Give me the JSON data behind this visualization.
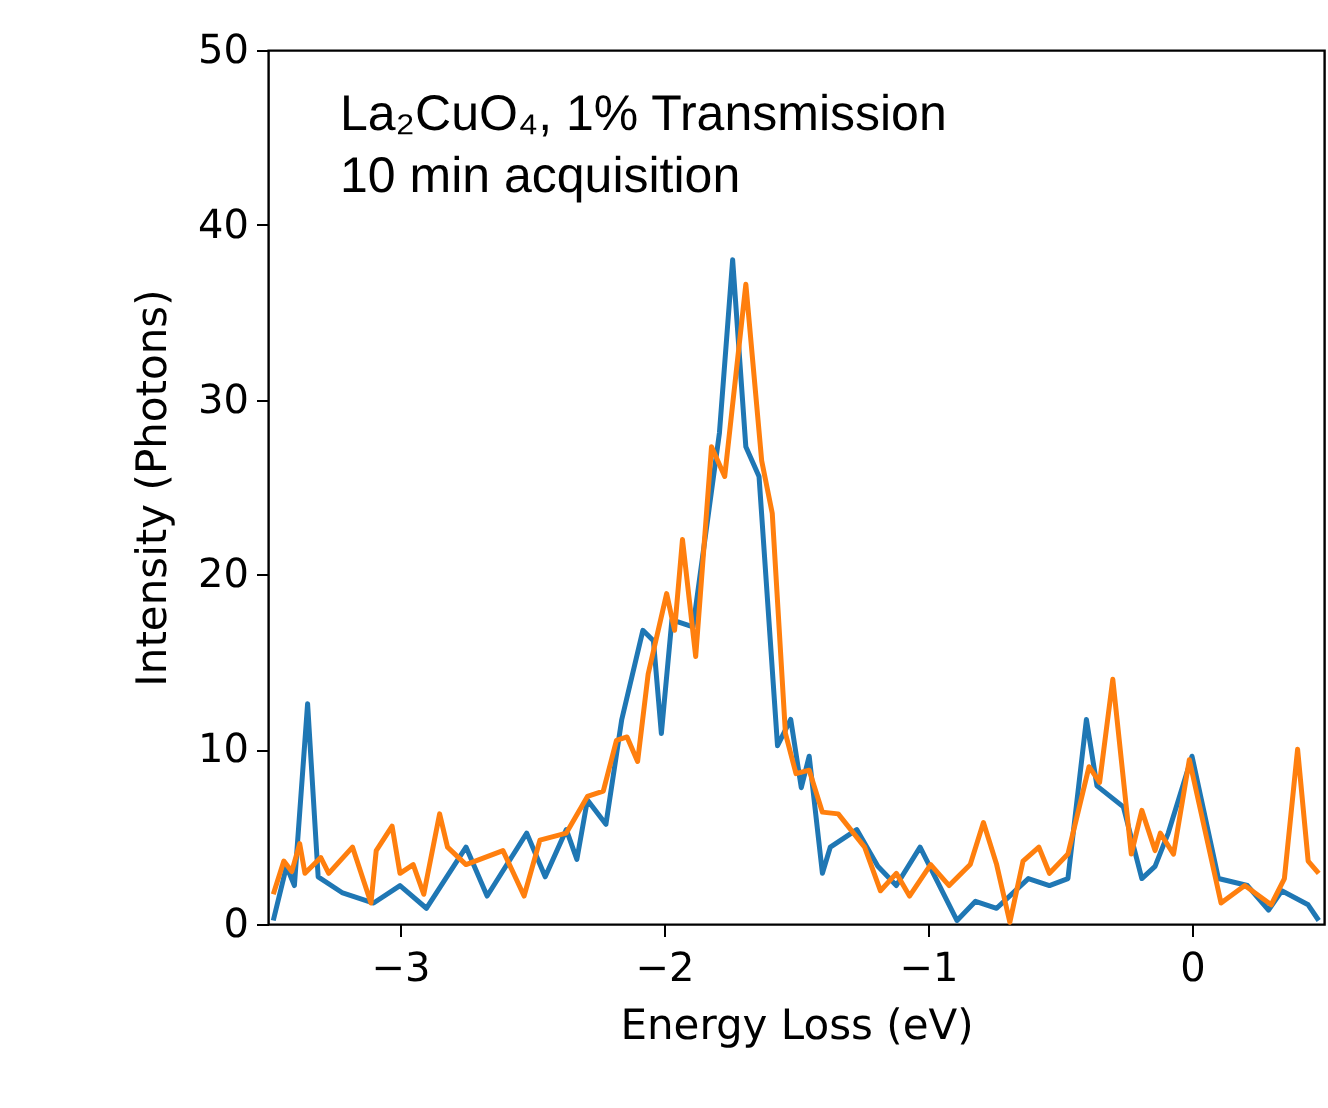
{
  "chart_data": {
    "type": "line",
    "xlabel": "Energy Loss (eV)",
    "ylabel": "Intensity (Photons)",
    "annotations": [
      "La₂CuO₄, 1% Transmission",
      "10 min acquisition"
    ],
    "xlim": [
      -3.5,
      0.5
    ],
    "xticks": [
      {
        "value": -3,
        "label": "−3"
      },
      {
        "value": -2,
        "label": "−2"
      },
      {
        "value": -1,
        "label": "−1"
      },
      0
    ],
    "ylim": [
      0,
      50
    ],
    "yticks": [
      0,
      10,
      20,
      30,
      40,
      50
    ],
    "grid": false,
    "marker": "none",
    "line_style": "solid",
    "series": [
      {
        "color": "#1f77b4",
        "x": [
          -3.48,
          -3.43,
          -3.4,
          -3.35,
          -3.31,
          -3.22,
          -3.1,
          -3.0,
          -2.9,
          -2.75,
          -2.67,
          -2.52,
          -2.45,
          -2.37,
          -2.33,
          -2.29,
          -2.22,
          -2.16,
          -2.08,
          -2.04,
          -2.01,
          -1.97,
          -1.89,
          -1.79,
          -1.74,
          -1.69,
          -1.64,
          -1.57,
          -1.52,
          -1.48,
          -1.45,
          -1.4,
          -1.37,
          -1.27,
          -1.19,
          -1.12,
          -1.03,
          -0.97,
          -0.89,
          -0.82,
          -0.74,
          -0.62,
          -0.54,
          -0.47,
          -0.4,
          -0.36,
          -0.26,
          -0.19,
          -0.14,
          -0.09,
          0.0,
          0.1,
          0.21,
          0.29,
          0.34,
          0.44,
          0.48
        ],
        "values": [
          0.2,
          3.3,
          2.2,
          12.6,
          2.7,
          1.8,
          1.2,
          2.2,
          0.9,
          4.4,
          1.6,
          5.2,
          2.7,
          5.4,
          3.7,
          7.1,
          5.7,
          11.7,
          16.8,
          16.2,
          10.9,
          17.4,
          17,
          28.1,
          38,
          27.3,
          25.6,
          10.2,
          11.7,
          7.8,
          9.6,
          2.9,
          4.4,
          5.4,
          3.3,
          2.2,
          4.4,
          2.6,
          0.2,
          1.3,
          0.9,
          2.6,
          2.2,
          2.6,
          11.7,
          7.9,
          6.7,
          2.6,
          3.3,
          5.2,
          9.6,
          2.6,
          2.2,
          0.8,
          1.9,
          1.1,
          0.2
        ]
      },
      {
        "color": "#ff7f0e",
        "x": [
          -3.48,
          -3.44,
          -3.41,
          -3.38,
          -3.36,
          -3.3,
          -3.27,
          -3.18,
          -3.11,
          -3.09,
          -3.03,
          -3.0,
          -2.95,
          -2.91,
          -2.85,
          -2.82,
          -2.75,
          -2.61,
          -2.53,
          -2.47,
          -2.37,
          -2.29,
          -2.23,
          -2.18,
          -2.14,
          -2.1,
          -2.06,
          -1.99,
          -1.96,
          -1.93,
          -1.88,
          -1.82,
          -1.77,
          -1.69,
          -1.63,
          -1.59,
          -1.54,
          -1.5,
          -1.45,
          -1.4,
          -1.34,
          -1.24,
          -1.18,
          -1.12,
          -1.07,
          -0.99,
          -0.92,
          -0.84,
          -0.79,
          -0.74,
          -0.69,
          -0.64,
          -0.58,
          -0.54,
          -0.47,
          -0.39,
          -0.35,
          -0.3,
          -0.23,
          -0.19,
          -0.14,
          -0.12,
          -0.07,
          -0.01,
          0.11,
          0.2,
          0.3,
          0.35,
          0.4,
          0.44,
          0.48
        ],
        "values": [
          1.7,
          3.6,
          3.0,
          4.6,
          2.9,
          3.8,
          2.9,
          4.4,
          1.2,
          4.2,
          5.6,
          2.9,
          3.4,
          1.7,
          6.3,
          4.4,
          3.4,
          4.2,
          1.6,
          4.8,
          5.2,
          7.3,
          7.6,
          10.5,
          10.7,
          9.3,
          14.3,
          18.9,
          16.8,
          22,
          15.3,
          27.3,
          25.6,
          36.6,
          26.5,
          23.5,
          10.9,
          8.6,
          8.8,
          6.4,
          6.3,
          4.4,
          1.9,
          2.9,
          1.6,
          3.4,
          2.2,
          3.4,
          5.8,
          3.4,
          0.1,
          3.6,
          4.4,
          2.9,
          4.0,
          9.0,
          8.1,
          14.0,
          4.0,
          6.5,
          4.2,
          5.2,
          4.0,
          9.4,
          1.2,
          2.2,
          1.1,
          2.6,
          10.0,
          3.6,
          2.9
        ]
      }
    ]
  }
}
